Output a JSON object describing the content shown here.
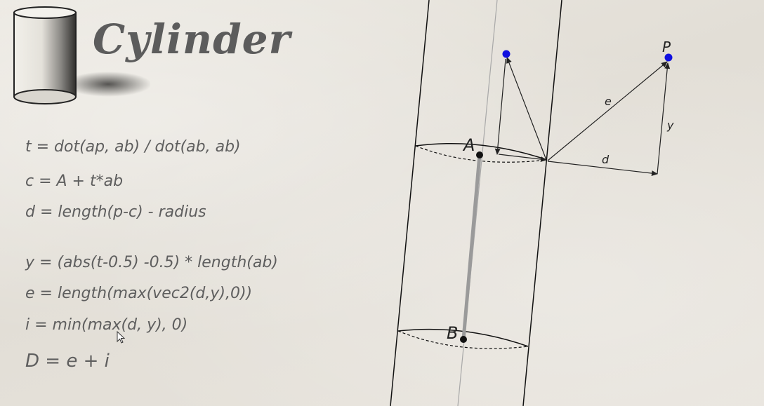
{
  "title": "Cylinder",
  "formulas": [
    "t = dot(ap, ab) / dot(ab, ab)",
    "c = A + t*ab",
    "d = length(p-c) - radius",
    "y = (abs(t-0.5) -0.5)  * length(ab)",
    "e = length(max(vec2(d,y),0))",
    "i = min(max(d, y), 0)",
    "D = e + i"
  ],
  "diagram": {
    "point_a": "A",
    "point_b": "B",
    "point_p": "P",
    "label_e": "e",
    "label_y": "y",
    "label_d": "d",
    "colors": {
      "sample_point": "#1010e0",
      "axis": "#9a9a9a",
      "ink": "#111111"
    }
  },
  "icons": {
    "cylinder": "cylinder-icon",
    "cursor": "mouse-pointer-icon"
  }
}
